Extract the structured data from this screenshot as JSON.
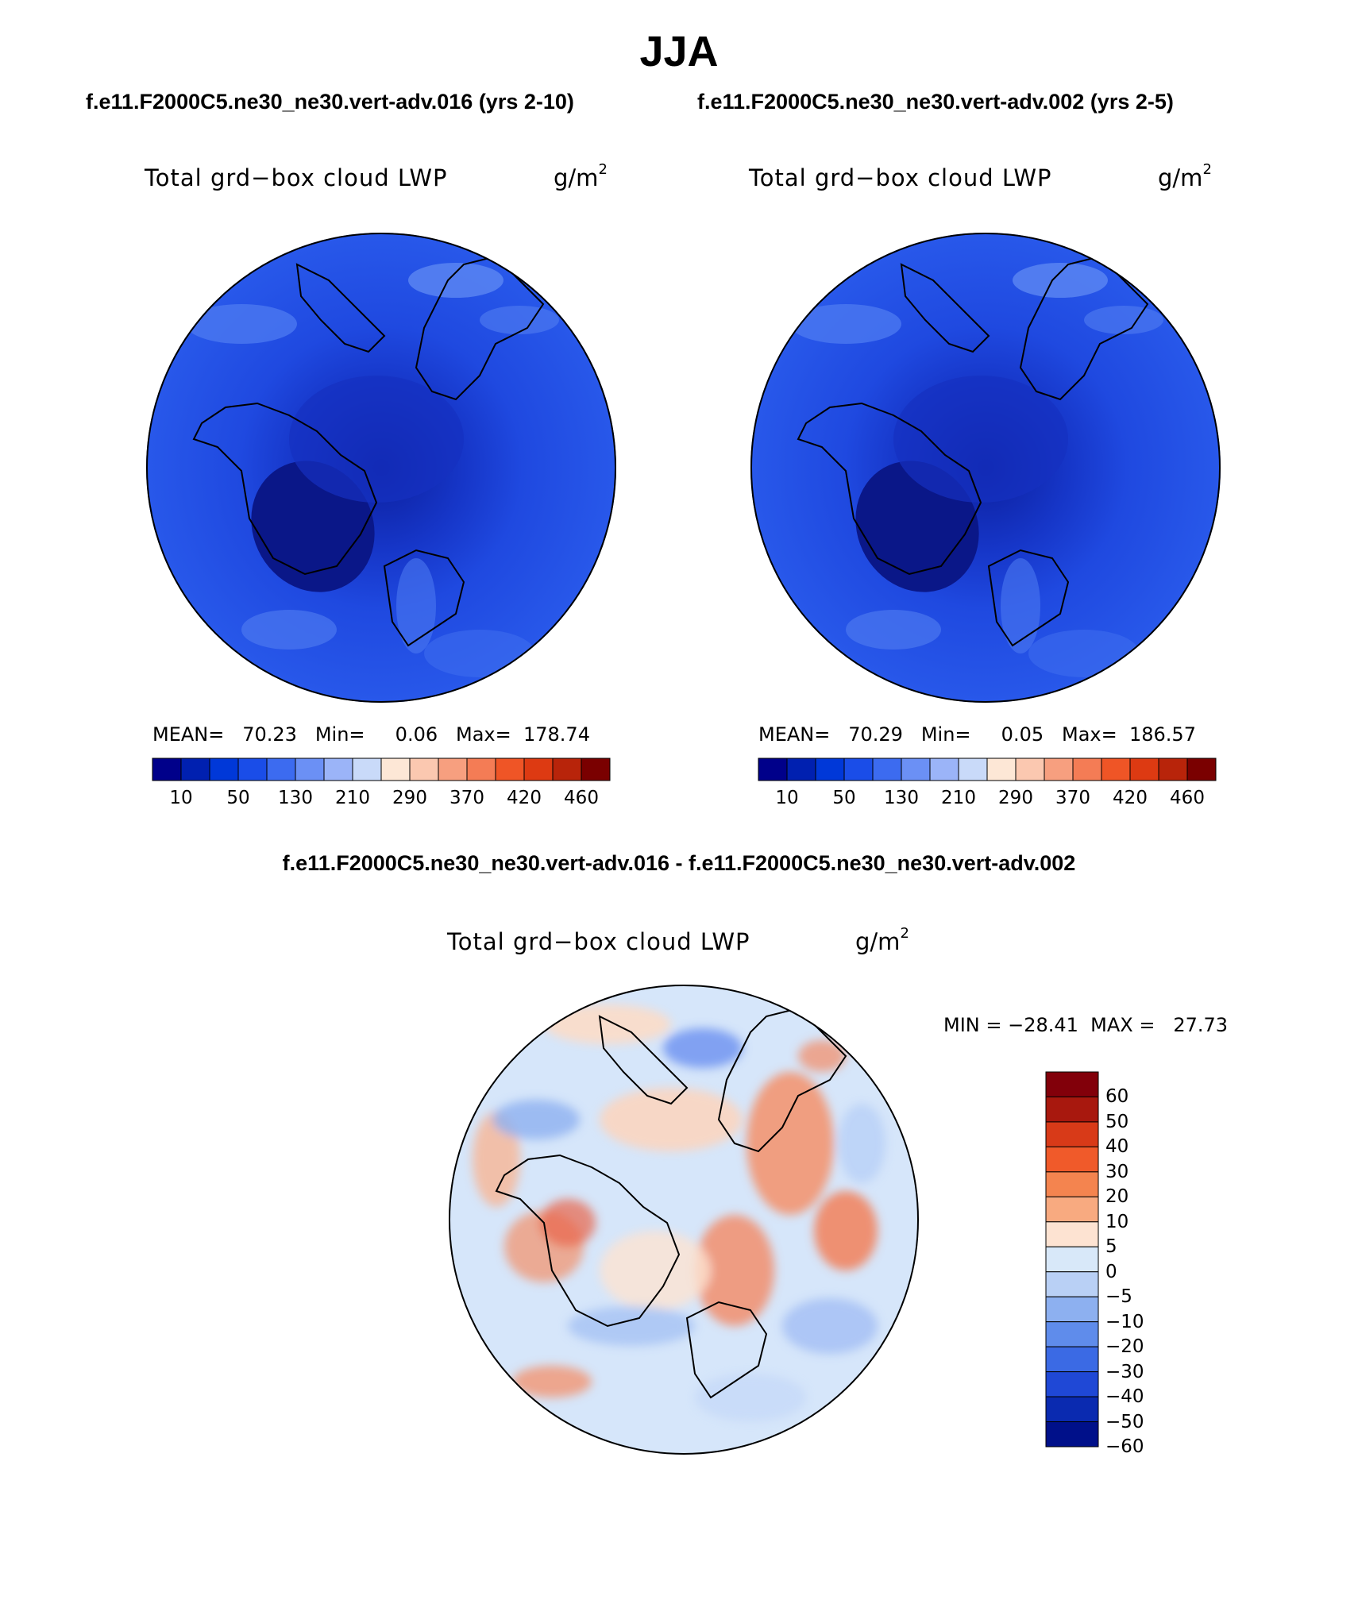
{
  "title": "JJA",
  "panels": [
    {
      "case": "f.e11.F2000C5.ne30_ne30.vert-adv.016 (yrs 2-10)",
      "variable": "Total grd−box cloud LWP",
      "units": "g/m",
      "units_exp": "2",
      "stats": "MEAN=   70.23   Min=     0.06   Max=  178.74"
    },
    {
      "case": "f.e11.F2000C5.ne30_ne30.vert-adv.002 (yrs 2-5)",
      "variable": "Total grd−box cloud LWP",
      "units": "g/m",
      "units_exp": "2",
      "stats": "MEAN=   70.29   Min=     0.05   Max=  186.57"
    }
  ],
  "colorbar": {
    "colors": [
      "#00008a",
      "#0020b0",
      "#0038d8",
      "#1a4de8",
      "#3c6bf0",
      "#6b90f5",
      "#9bb4f8",
      "#c9daf9",
      "#fde7d6",
      "#fbc8b0",
      "#f79f7f",
      "#f47c55",
      "#ef5526",
      "#dd3a12",
      "#b8240a",
      "#7a0000"
    ],
    "labels": [
      "10",
      "50",
      "130",
      "210",
      "290",
      "370",
      "420",
      "460"
    ]
  },
  "diff": {
    "title": "f.e11.F2000C5.ne30_ne30.vert-adv.016 - f.e11.F2000C5.ne30_ne30.vert-adv.002",
    "variable": "Total grd−box cloud LWP",
    "units": "g/m",
    "units_exp": "2",
    "stats": "MIN = −28.41  MAX =   27.73",
    "colorbar": {
      "colors": [
        "#82000a",
        "#a8180e",
        "#d83a18",
        "#f05a2a",
        "#f4844f",
        "#f8aa80",
        "#fde3d2",
        "#d8e8f9",
        "#b9d0f5",
        "#8db0f0",
        "#5f8ceb",
        "#3b6ae4",
        "#1f48d6",
        "#0a2ab0",
        "#00108a"
      ],
      "labels": [
        "60",
        "50",
        "40",
        "30",
        "20",
        "10",
        "5",
        "0",
        "−5",
        "−10",
        "−20",
        "−30",
        "−40",
        "−50",
        "−60"
      ]
    }
  }
}
